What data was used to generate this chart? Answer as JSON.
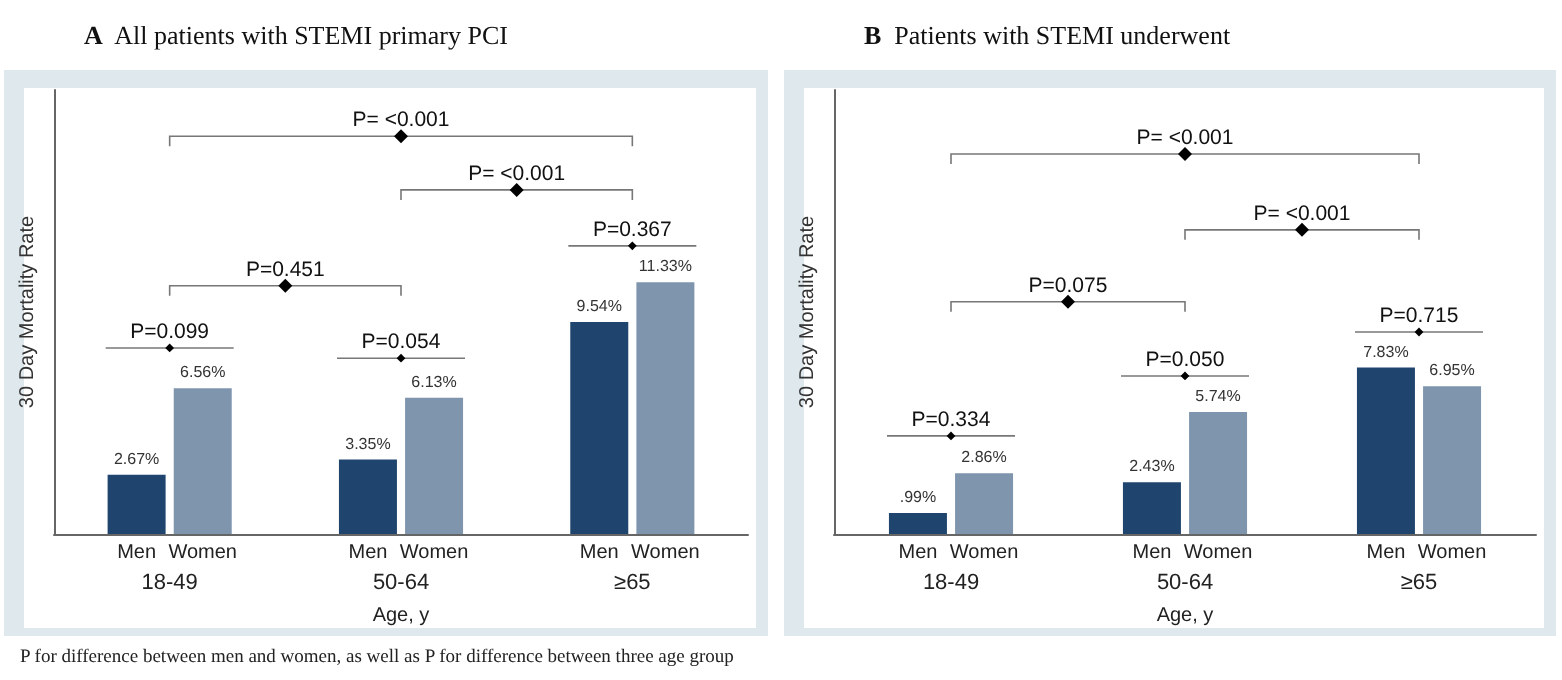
{
  "chart_data": [
    {
      "type": "bar",
      "title": "A All patients with STEMI primary PCI",
      "xlabel": "Age, y",
      "ylabel": "30 Day Mortality Rate",
      "categories": [
        "18-49",
        "50-64",
        "≥65"
      ],
      "legend": false,
      "grid": false,
      "tick_labels": "x",
      "series": [
        {
          "name": "Men",
          "color": "#1f456e",
          "values": [
            2.67,
            3.35,
            9.54
          ],
          "value_labels": [
            "2.67%",
            "3.35%",
            "9.54%"
          ]
        },
        {
          "name": "Women",
          "color": "#7f95ae",
          "values": [
            6.56,
            6.13,
            11.33
          ],
          "value_labels": [
            "6.56%",
            "6.13%",
            "11.33%"
          ]
        }
      ],
      "annotations": [
        "P= <0.001",
        "P= <0.001",
        "P=0.367",
        "P=0.451",
        "P=0.099",
        "P=0.054",
        "P for difference between men and women, as well as P for difference between three age group"
      ]
    },
    {
      "type": "bar",
      "title": "B Patients with STEMI underwent",
      "xlabel": "Age, y",
      "ylabel": "30 Day Mortality Rate",
      "categories": [
        "18-49",
        "50-64",
        "≥65"
      ],
      "legend": false,
      "grid": false,
      "tick_labels": "x",
      "series": [
        {
          "name": "Men",
          "color": "#1f456e",
          "values": [
            0.99,
            2.43,
            7.83
          ],
          "value_labels": [
            ".99%",
            "2.43%",
            "7.83%"
          ]
        },
        {
          "name": "Women",
          "color": "#7f95ae",
          "values": [
            2.86,
            5.74,
            6.95
          ],
          "value_labels": [
            "2.86%",
            "5.74%",
            "6.95%"
          ]
        }
      ],
      "annotations": [
        "P= <0.001",
        "P= <0.001",
        "P=0.715",
        "P=0.075",
        "P=0.334",
        "P=0.050"
      ]
    }
  ]
}
